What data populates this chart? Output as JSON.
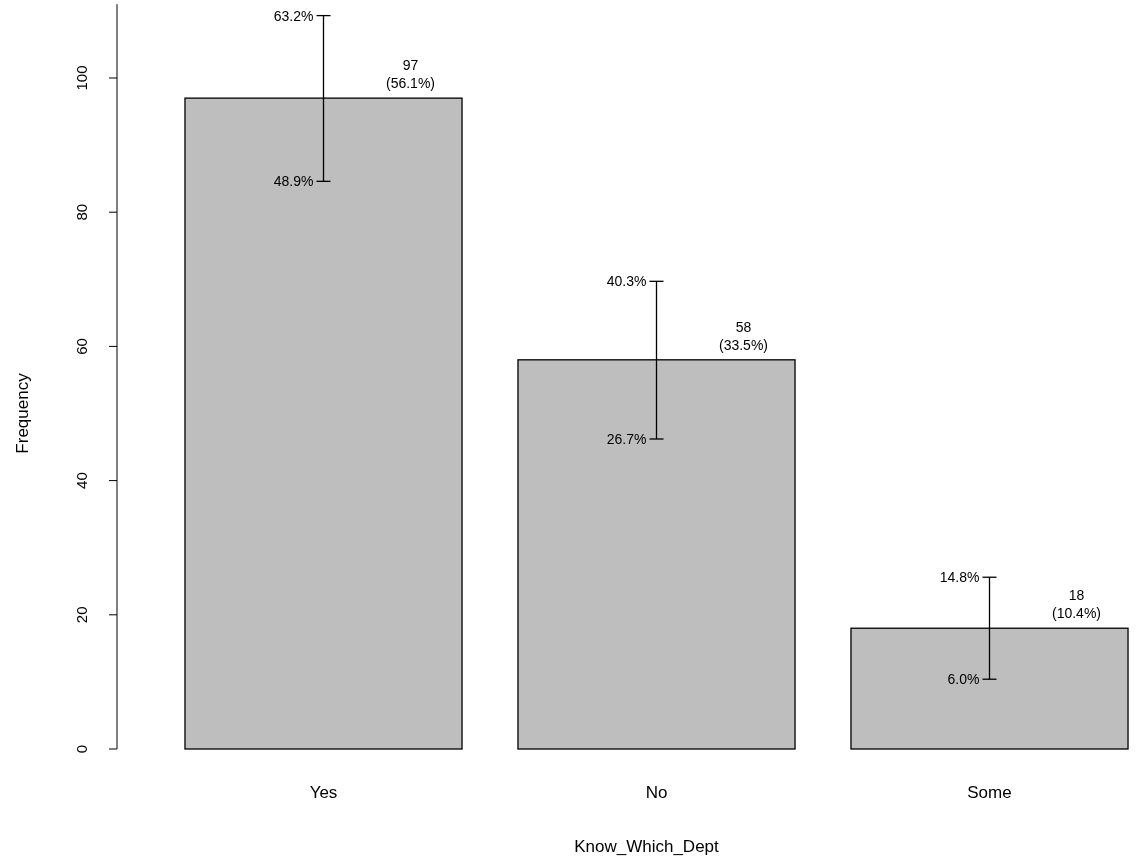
{
  "chart_data": {
    "type": "bar",
    "xlabel": "Know_Which_Dept",
    "ylabel": "Frequency",
    "categories": [
      "Yes",
      "No",
      "Some"
    ],
    "values": [
      97,
      58,
      18
    ],
    "color": "#bebebe",
    "value_labels": [
      "97\n(56.1%)",
      "58\n(33.5%)",
      "18\n(10.4%)"
    ],
    "errors": [
      [
        84.6,
        109.3
      ],
      [
        46.2,
        69.7
      ],
      [
        10.4,
        25.6
      ]
    ],
    "annotations": [
      {
        "text": "63.2%",
        "x": "Yes",
        "y": 109.3
      },
      {
        "text": "48.9%",
        "x": "Yes",
        "y": 84.6
      },
      {
        "text": "40.3%",
        "x": "No",
        "y": 69.7
      },
      {
        "text": "26.7%",
        "x": "No",
        "y": 46.2
      },
      {
        "text": "14.8%",
        "x": "Some",
        "y": 25.6
      },
      {
        "text": "6.0%",
        "x": "Some",
        "y": 10.4
      }
    ],
    "ylim": [
      0,
      111
    ],
    "yticks": [
      0,
      20,
      40,
      60,
      80,
      100
    ],
    "grid": false
  }
}
